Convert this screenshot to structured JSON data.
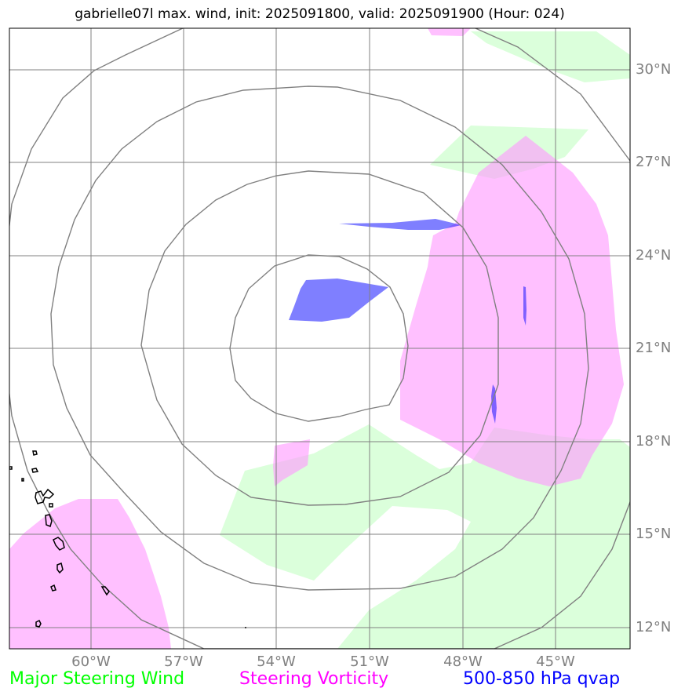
{
  "title": "gabrielle07l max. wind, init: 2025091800, valid: 2025091900 (Hour: 024)",
  "colors": {
    "steering_wind": "#00ff00",
    "steering_vorticity": "#ff00ff",
    "qvap": "#0000ff",
    "wind_fill": "#ccffcc",
    "vorticity_fill": "#ff99ff",
    "qvap_fill": "#0000ff",
    "grid": "#808080",
    "range_rings": "#808080",
    "coastline": "#000000"
  },
  "lat_labels": [
    "30°N",
    "27°N",
    "24°N",
    "21°N",
    "18°N",
    "15°N",
    "12°N"
  ],
  "lon_labels": [
    "60°W",
    "57°W",
    "54°W",
    "51°W",
    "48°W",
    "45°W"
  ],
  "legend": {
    "wind": "Major Steering Wind",
    "vorticity": "Steering Vorticity",
    "qvap": "500-850 hPa qvap"
  }
}
